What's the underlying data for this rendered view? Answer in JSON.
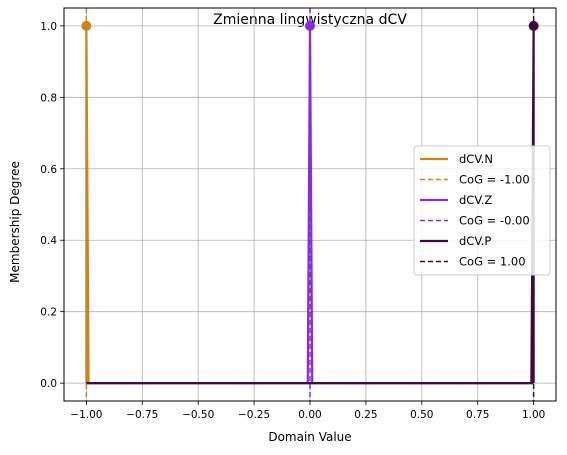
{
  "chart_data": {
    "type": "line",
    "title": "Zmienna lingwistyczna dCV",
    "xlabel": "Domain Value",
    "ylabel": "Membership Degree",
    "xlim": [
      -1.1,
      1.1
    ],
    "ylim": [
      -0.05,
      1.05
    ],
    "xticks": [
      -1.0,
      -0.75,
      -0.5,
      -0.25,
      0.0,
      0.25,
      0.5,
      0.75,
      1.0
    ],
    "xtick_labels": [
      "−1.00",
      "−0.75",
      "−0.50",
      "−0.25",
      "0.00",
      "0.25",
      "0.50",
      "0.75",
      "1.00"
    ],
    "yticks": [
      0.0,
      0.2,
      0.4,
      0.6,
      0.8,
      1.0
    ],
    "ytick_labels": [
      "0.0",
      "0.2",
      "0.4",
      "0.6",
      "0.8",
      "1.0"
    ],
    "grid": true,
    "legend_position": "center-right",
    "series": [
      {
        "name": "dCV.N",
        "color": "#c9851f",
        "x": [
          -1.0,
          -1.0,
          -0.99,
          1.0
        ],
        "y": [
          0.0,
          1.0,
          0.0,
          0.0
        ],
        "peak": [
          -1.0,
          1.0
        ],
        "cog_label": "CoG = -1.00",
        "cog": -1.0
      },
      {
        "name": "dCV.Z",
        "color": "#8a2be2",
        "x": [
          -1.0,
          -0.01,
          0.0,
          0.01,
          1.0
        ],
        "y": [
          0.0,
          0.0,
          1.0,
          0.0,
          0.0
        ],
        "peak": [
          0.0,
          1.0
        ],
        "cog_label": "CoG = -0.00",
        "cog": 0.0
      },
      {
        "name": "dCV.P",
        "color": "#3d0a3d",
        "x": [
          -1.0,
          0.99,
          1.0,
          1.0
        ],
        "y": [
          0.0,
          0.0,
          1.0,
          0.0
        ],
        "peak": [
          1.0,
          1.0
        ],
        "cog_label": "CoG = 1.00",
        "cog": 1.0
      }
    ]
  }
}
